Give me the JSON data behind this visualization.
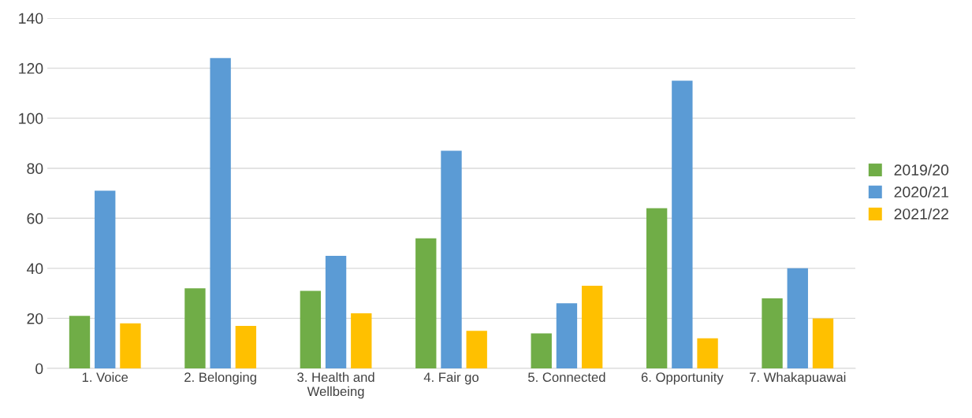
{
  "chart_data": {
    "type": "bar",
    "categories": [
      "1. Voice",
      "2. Belonging",
      "3. Health and\nWellbeing",
      "4. Fair go",
      "5. Connected",
      "6. Opportunity",
      "7. Whakapuawai"
    ],
    "series": [
      {
        "name": "2019/20",
        "color": "#70ad47",
        "values": [
          21,
          32,
          31,
          52,
          14,
          64,
          28
        ]
      },
      {
        "name": "2020/21",
        "color": "#5b9bd5",
        "values": [
          71,
          124,
          45,
          87,
          26,
          115,
          40
        ]
      },
      {
        "name": "2021/22",
        "color": "#ffc000",
        "values": [
          18,
          17,
          22,
          15,
          33,
          12,
          20
        ]
      }
    ],
    "ylim": [
      0,
      140
    ],
    "yticks": [
      0,
      20,
      40,
      60,
      80,
      100,
      120,
      140
    ],
    "grid": "y",
    "legend": "right"
  }
}
